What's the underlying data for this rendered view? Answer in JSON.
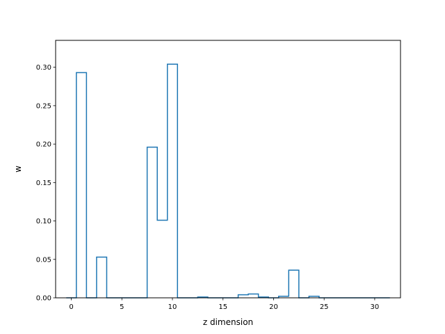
{
  "chart_data": {
    "type": "step",
    "title": "",
    "xlabel": "z dimension",
    "ylabel": "w",
    "xlim": [
      -1.55,
      32.55
    ],
    "ylim": [
      0,
      0.335
    ],
    "xticks": [
      0,
      5,
      10,
      15,
      20,
      25,
      30
    ],
    "yticks": [
      0.0,
      0.05,
      0.1,
      0.15,
      0.2,
      0.25,
      0.3
    ],
    "ytick_labels": [
      "0.00",
      "0.05",
      "0.10",
      "0.15",
      "0.20",
      "0.25",
      "0.30"
    ],
    "grid": false,
    "legend": "none",
    "series_color": "#1f77b4",
    "x": [
      0,
      1,
      2,
      3,
      4,
      5,
      6,
      7,
      8,
      9,
      10,
      11,
      12,
      13,
      14,
      15,
      16,
      17,
      18,
      19,
      20,
      21,
      22,
      23,
      24,
      25,
      26,
      27,
      28,
      29,
      30,
      31
    ],
    "values": [
      0.0,
      0.293,
      0.0,
      0.053,
      0.0,
      0.0,
      0.0,
      0.0,
      0.196,
      0.101,
      0.304,
      0.0,
      0.0,
      0.001,
      0.0,
      0.0,
      0.0,
      0.004,
      0.005,
      0.001,
      0.0,
      0.002,
      0.036,
      0.0,
      0.002,
      0.0,
      0.0,
      0.0,
      0.0,
      0.0,
      0.0,
      0.0
    ]
  }
}
